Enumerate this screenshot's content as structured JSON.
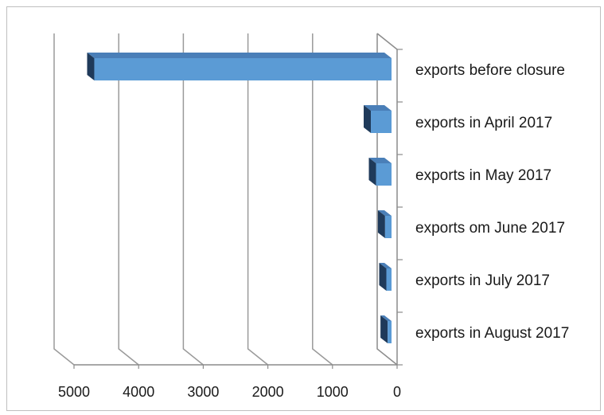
{
  "chart_data": {
    "type": "bar",
    "orientation": "horizontal",
    "style": "3d",
    "x_reversed": true,
    "categories": [
      "exports before closure",
      "exports in April 2017",
      "exports in May 2017",
      "exports om June 2017",
      "exports in July 2017",
      "exports in August 2017"
    ],
    "values": [
      4600,
      320,
      240,
      100,
      80,
      60
    ],
    "xlim": [
      0,
      5000
    ],
    "xticks": [
      "5000",
      "4000",
      "3000",
      "2000",
      "1000",
      "0"
    ],
    "grid": true,
    "legend": "none",
    "colors": {
      "bar_front": "#5b9bd5",
      "bar_top": "#4a7fb8",
      "bar_side": "#1f3a5a",
      "grid": "#9a9a9a",
      "axis": "#8c8c8c"
    }
  }
}
